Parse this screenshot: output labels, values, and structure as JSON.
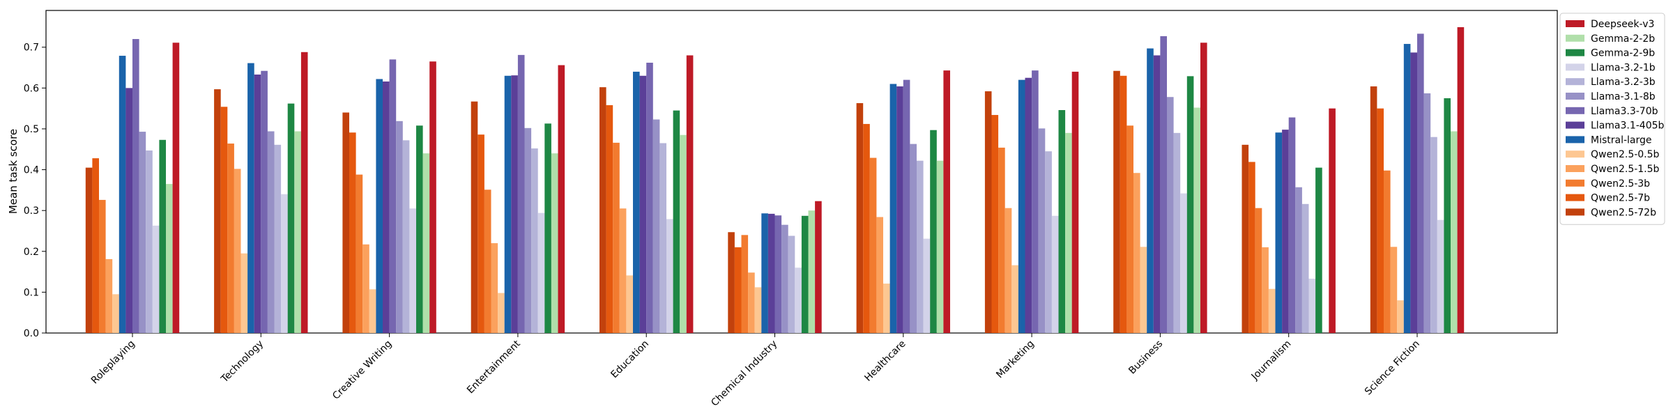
{
  "chart_data": {
    "type": "bar",
    "title": "",
    "xlabel": "",
    "ylabel": "Mean task score",
    "ylim": [
      0,
      0.79
    ],
    "yticks": [
      "0.0",
      "0.1",
      "0.2",
      "0.3",
      "0.4",
      "0.5",
      "0.6",
      "0.7"
    ],
    "grid": false,
    "legend_position": "right-outside-top",
    "categories": [
      "Roleplaying",
      "Technology",
      "Creative Writing",
      "Entertainment",
      "Education",
      "Chemical Industry",
      "Healthcare",
      "Marketing",
      "Business",
      "Journalism",
      "Science Fiction"
    ],
    "series": [
      {
        "name": "Qwen2.5-72b",
        "color": "#c2410c",
        "values": [
          0.405,
          0.597,
          0.54,
          0.567,
          0.602,
          0.247,
          0.563,
          0.592,
          0.642,
          0.461,
          0.604
        ]
      },
      {
        "name": "Qwen2.5-7b",
        "color": "#e5580e",
        "values": [
          0.428,
          0.554,
          0.491,
          0.486,
          0.558,
          0.21,
          0.512,
          0.534,
          0.63,
          0.419,
          0.55
        ]
      },
      {
        "name": "Qwen2.5-3b",
        "color": "#f27b2f",
        "values": [
          0.326,
          0.464,
          0.388,
          0.351,
          0.466,
          0.24,
          0.429,
          0.454,
          0.508,
          0.306,
          0.398
        ]
      },
      {
        "name": "Qwen2.5-1.5b",
        "color": "#fba15d",
        "values": [
          0.181,
          0.402,
          0.217,
          0.22,
          0.305,
          0.148,
          0.284,
          0.306,
          0.392,
          0.21,
          0.211
        ]
      },
      {
        "name": "Qwen2.5-0.5b",
        "color": "#fdc792",
        "values": [
          0.095,
          0.195,
          0.107,
          0.098,
          0.141,
          0.112,
          0.121,
          0.166,
          0.211,
          0.108,
          0.08
        ]
      },
      {
        "name": "Mistral-large",
        "color": "#1a63aa",
        "values": [
          0.679,
          0.661,
          0.622,
          0.63,
          0.64,
          0.293,
          0.61,
          0.62,
          0.697,
          0.491,
          0.708
        ]
      },
      {
        "name": "Llama3.1-405b",
        "color": "#5b3f98",
        "values": [
          0.6,
          0.633,
          0.616,
          0.631,
          0.63,
          0.292,
          0.604,
          0.625,
          0.68,
          0.498,
          0.687
        ]
      },
      {
        "name": "Llama3.3-70b",
        "color": "#7666b0",
        "values": [
          0.72,
          0.642,
          0.67,
          0.681,
          0.662,
          0.288,
          0.62,
          0.643,
          0.727,
          0.528,
          0.733
        ]
      },
      {
        "name": "Llama-3.1-8b",
        "color": "#9791c6",
        "values": [
          0.493,
          0.494,
          0.519,
          0.502,
          0.523,
          0.265,
          0.463,
          0.501,
          0.578,
          0.357,
          0.587
        ]
      },
      {
        "name": "Llama-3.2-3b",
        "color": "#b4b3d8",
        "values": [
          0.447,
          0.461,
          0.472,
          0.452,
          0.465,
          0.238,
          0.422,
          0.445,
          0.49,
          0.316,
          0.48
        ]
      },
      {
        "name": "Llama-3.2-1b",
        "color": "#d3d3e9",
        "values": [
          0.263,
          0.34,
          0.305,
          0.294,
          0.279,
          0.16,
          0.231,
          0.287,
          0.342,
          0.133,
          0.277
        ]
      },
      {
        "name": "Gemma-2-9b",
        "color": "#1e8744",
        "values": [
          0.473,
          0.562,
          0.508,
          0.513,
          0.545,
          0.287,
          0.497,
          0.546,
          0.629,
          0.405,
          0.575
        ]
      },
      {
        "name": "Gemma-2-2b",
        "color": "#b0dfaa",
        "values": [
          0.365,
          0.494,
          0.44,
          0.44,
          0.485,
          0.3,
          0.422,
          0.49,
          0.552,
          0.0,
          0.494
        ]
      },
      {
        "name": "Deepseek-v3",
        "color": "#be1a26",
        "values": [
          0.711,
          0.688,
          0.665,
          0.656,
          0.68,
          0.323,
          0.643,
          0.64,
          0.711,
          0.55,
          0.749
        ]
      }
    ],
    "legend_order": [
      "Deepseek-v3",
      "Gemma-2-2b",
      "Gemma-2-9b",
      "Llama-3.2-1b",
      "Llama-3.2-3b",
      "Llama-3.1-8b",
      "Llama3.3-70b",
      "Llama3.1-405b",
      "Mistral-large",
      "Qwen2.5-0.5b",
      "Qwen2.5-1.5b",
      "Qwen2.5-3b",
      "Qwen2.5-7b",
      "Qwen2.5-72b"
    ]
  }
}
